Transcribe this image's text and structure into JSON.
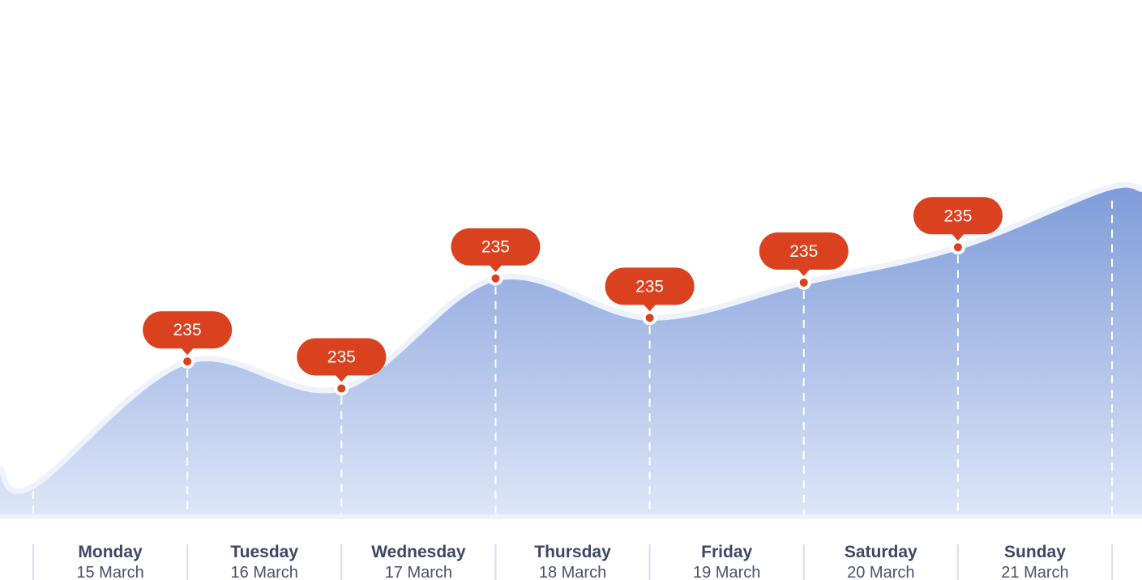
{
  "chart_data": {
    "type": "area",
    "categories": [
      {
        "day": "Monday",
        "date": "15 March"
      },
      {
        "day": "Tuesday",
        "date": "16 March"
      },
      {
        "day": "Wednesday",
        "date": "17 March"
      },
      {
        "day": "Thursday",
        "date": "18 March"
      },
      {
        "day": "Friday",
        "date": "19 March"
      },
      {
        "day": "Saturday",
        "date": "20 March"
      },
      {
        "day": "Sunday",
        "date": "21 March"
      }
    ],
    "markers": [
      {
        "label": "235",
        "level": 0.6
      },
      {
        "label": "235",
        "level": 0.47
      },
      {
        "label": "235",
        "level": 1.0
      },
      {
        "label": "235",
        "level": 0.81
      },
      {
        "label": "235",
        "level": 0.98
      },
      {
        "label": "235",
        "level": 1.15
      }
    ],
    "curve": {
      "start_level": 0.0,
      "end_level": 1.43
    },
    "grid": true,
    "legend": "none"
  },
  "colors": {
    "area_top": "#7f9bd9",
    "area_bottom": "#dde6f8",
    "outline": "#eef2fb",
    "bubble": "#d9411f",
    "bubble_text": "#ffffff",
    "marker_dot": "#d9411f",
    "marker_ring": "#ffffff",
    "gridline": "#ffffff",
    "axis_divider": "#d8dcf0",
    "day_label": "#3f4566",
    "date_label": "#4a5070"
  }
}
